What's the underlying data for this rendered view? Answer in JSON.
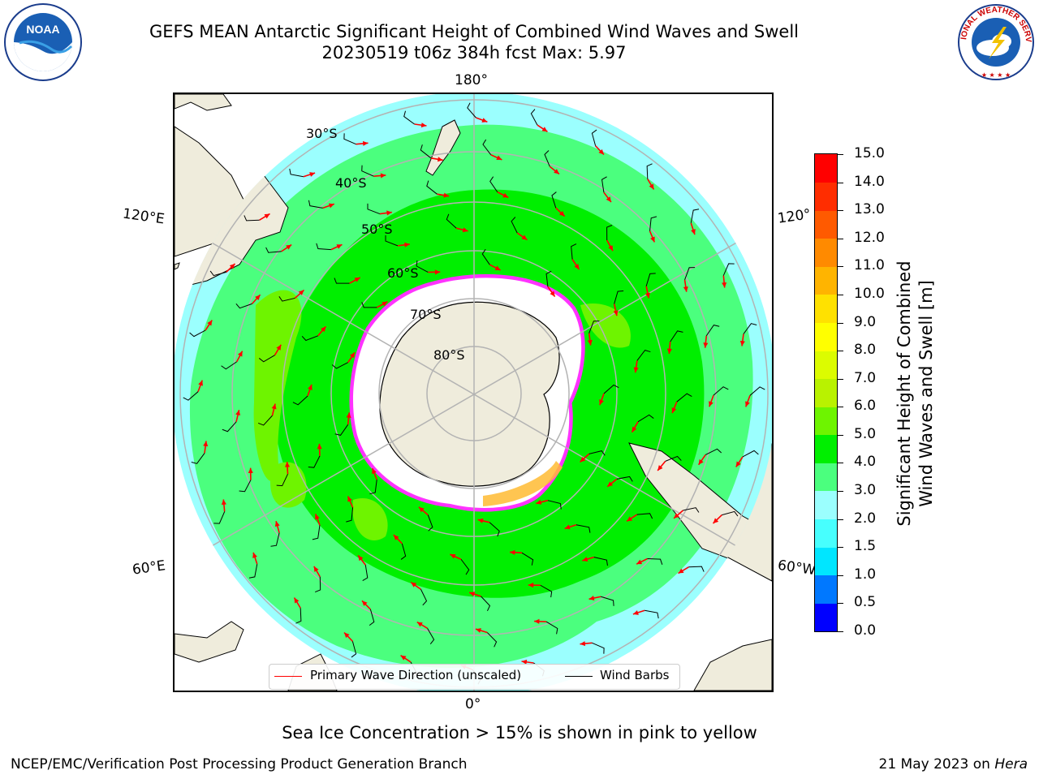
{
  "titles": {
    "line1": "GEFS MEAN Antarctic Significant Height of Combined Wind Waves and Swell",
    "line2": "20230519 t06z 384h fcst   Max: 5.97"
  },
  "logos": {
    "left_text": "NOAA",
    "right_text": "NATIONAL WEATHER SERVICE"
  },
  "map": {
    "longitude_labels": {
      "top": "180°",
      "upper_left": "120°E",
      "upper_right": "120°",
      "lower_left": "60°E",
      "lower_right": "60°W",
      "bottom": "0°"
    },
    "latitude_labels": [
      "30°S",
      "40°S",
      "50°S",
      "60°S",
      "70°S",
      "80°S"
    ],
    "colors": {
      "land": "#efecdc",
      "ice_free_unfilled": "#ffffff",
      "wave_2_3": "#9bfffe",
      "wave_3_4": "#4bff7e",
      "wave_4_5": "#00ef00",
      "wave_5_6": "#6ef400",
      "sea_ice_low": "#ff33ff",
      "sea_ice_high": "#ffbb33",
      "wave_arrow": "#ff0000",
      "wind_barb": "#000000",
      "graticule": "#b3b3b3"
    }
  },
  "legend": {
    "primary_wave_label": "Primary Wave Direction (unscaled)",
    "primary_wave_color": "#ff0000",
    "wind_barbs_label": "Wind Barbs",
    "wind_barbs_color": "#000000"
  },
  "colorbar": {
    "label_line1": "Significant Height of Combined",
    "label_line2": "Wind Waves and Swell [m]",
    "ticks": [
      "0.0",
      "0.5",
      "1.0",
      "1.5",
      "2.0",
      "3.0",
      "4.0",
      "5.0",
      "6.0",
      "7.0",
      "8.0",
      "9.0",
      "10.0",
      "11.0",
      "12.0",
      "13.0",
      "14.0",
      "15.0"
    ],
    "colors": [
      "#0000ff",
      "#0078ff",
      "#00e6ff",
      "#47fffe",
      "#9bfffe",
      "#4bff7e",
      "#00ef00",
      "#6ef400",
      "#b9f200",
      "#dcfc00",
      "#ffff00",
      "#ffe100",
      "#ffb400",
      "#ff8a00",
      "#ff5a00",
      "#ff2d00",
      "#ff0000"
    ]
  },
  "notes": {
    "ice_note": "Sea Ice Concentration > 15% is shown in pink to yellow",
    "footer_left": "NCEP/EMC/Verification Post Processing Product Generation Branch",
    "footer_date": "21 May 2023 on ",
    "footer_machine": "Hera"
  }
}
